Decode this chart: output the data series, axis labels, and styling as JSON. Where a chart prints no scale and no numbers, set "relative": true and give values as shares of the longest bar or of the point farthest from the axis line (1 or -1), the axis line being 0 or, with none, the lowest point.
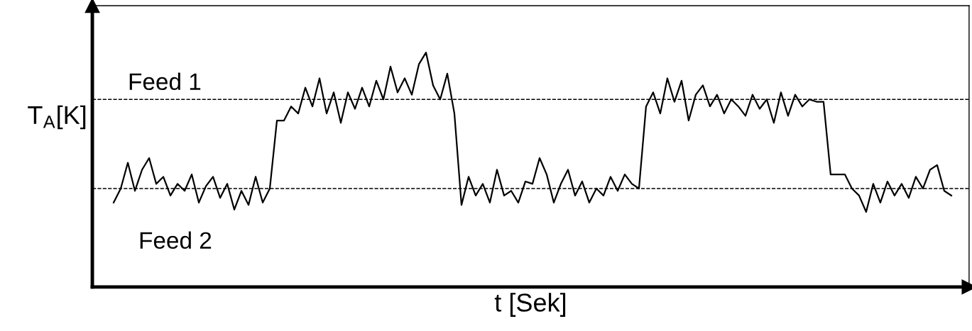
{
  "chart_data": {
    "type": "line",
    "relative": true,
    "xlabel": "t [Sek]",
    "ylabel": "T$_{A}$[K]",
    "categories": [
      null,
      null,
      null,
      null,
      null,
      null,
      null,
      null,
      null,
      null,
      null,
      null,
      null,
      null,
      null,
      null,
      null,
      null,
      null,
      null,
      null,
      null,
      null,
      null,
      null,
      null,
      null,
      null,
      null,
      null,
      null,
      null,
      null,
      null,
      null,
      null,
      null,
      null,
      null,
      null,
      null,
      null,
      null,
      null,
      null,
      null,
      null,
      null,
      null,
      null,
      null,
      null,
      null,
      null,
      null,
      null,
      null,
      null,
      null,
      null,
      null,
      null,
      null,
      null,
      null,
      null,
      null,
      null,
      null,
      null,
      null,
      null,
      null,
      null,
      null,
      null,
      null,
      null,
      null,
      null,
      null,
      null,
      null,
      null,
      null,
      null,
      null,
      null,
      null,
      null,
      null,
      null,
      null,
      null,
      null,
      null,
      null,
      null,
      null,
      null,
      null,
      null,
      null,
      null,
      null,
      null,
      null,
      null,
      null,
      null,
      null,
      null,
      null,
      null,
      null,
      null,
      null,
      null,
      null
    ],
    "series": [
      {
        "color": "#000000",
        "values": [
          0.36,
          0.42,
          0.53,
          0.41,
          0.5,
          0.55,
          0.44,
          0.47,
          0.39,
          0.44,
          0.41,
          0.48,
          0.36,
          0.43,
          0.47,
          0.38,
          0.44,
          0.33,
          0.41,
          0.35,
          0.47,
          0.36,
          0.42,
          0.71,
          0.71,
          0.77,
          0.74,
          0.85,
          0.77,
          0.89,
          0.74,
          0.83,
          0.7,
          0.83,
          0.76,
          0.85,
          0.77,
          0.88,
          0.8,
          0.94,
          0.83,
          0.89,
          0.82,
          0.95,
          1.0,
          0.86,
          0.8,
          0.91,
          0.74,
          0.35,
          0.47,
          0.39,
          0.44,
          0.36,
          0.5,
          0.39,
          0.41,
          0.36,
          0.45,
          0.44,
          0.55,
          0.48,
          0.36,
          0.44,
          0.5,
          0.39,
          0.45,
          0.36,
          0.42,
          0.39,
          0.47,
          0.41,
          0.48,
          0.44,
          0.42,
          0.77,
          0.83,
          0.74,
          0.89,
          0.79,
          0.88,
          0.71,
          0.82,
          0.86,
          0.77,
          0.82,
          0.74,
          0.8,
          0.77,
          0.73,
          0.82,
          0.76,
          0.8,
          0.7,
          0.83,
          0.73,
          0.82,
          0.77,
          0.8,
          0.79,
          0.79,
          0.48,
          0.48,
          0.48,
          0.42,
          0.39,
          0.32,
          0.44,
          0.36,
          0.45,
          0.39,
          0.44,
          0.38,
          0.47,
          0.42,
          0.5,
          0.52,
          0.41,
          0.39
        ]
      }
    ],
    "ref_lines": [
      {
        "axis": "y",
        "value": 0.8,
        "label": "Feed 1",
        "color": "#000000",
        "line_style": "dashed"
      },
      {
        "axis": "y",
        "value": 0.42,
        "label": "Feed 2",
        "color": "#000000",
        "line_style": "dashed"
      }
    ],
    "marker": "none",
    "line_style": "solid"
  }
}
